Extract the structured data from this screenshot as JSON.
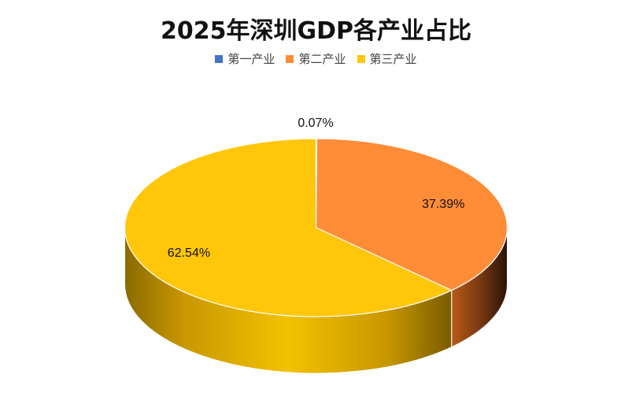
{
  "chart_data": {
    "type": "pie",
    "title": "2025年深圳GDP各产业占比",
    "legend_position": "top",
    "categories": [
      "第一产业",
      "第二产业",
      "第三产业"
    ],
    "values": [
      0.07,
      37.39,
      62.54
    ],
    "labels": [
      "0.07%",
      "37.39%",
      "62.54%"
    ],
    "colors": [
      "#4472C4",
      "#FF8C37",
      "#FFC60A"
    ],
    "style": "3d"
  }
}
